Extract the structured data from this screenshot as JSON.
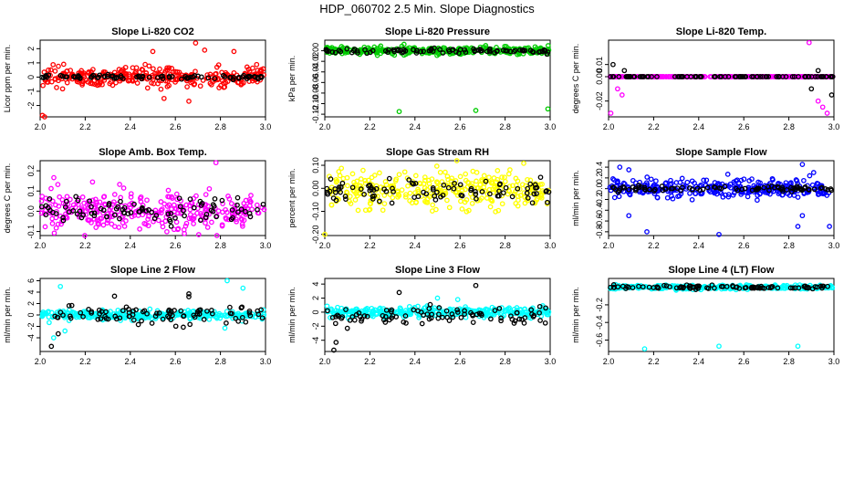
{
  "page_title": "HDP_060702  2.5 Min. Slope Diagnostics",
  "colors": {
    "black": "#000000",
    "red": "#ff0000",
    "green": "#00cc00",
    "magenta": "#ff00ff",
    "yellow": "#ffff00",
    "blue": "#0000ff",
    "cyan": "#00ffff"
  },
  "chart_data": [
    {
      "type": "scatter",
      "title": "Slope Li-820 CO2",
      "ylabel": "Licor ppm per min.",
      "xlabel": "",
      "xlim": [
        2.0,
        3.0
      ],
      "ylim": [
        -2.8,
        2.6
      ],
      "xticks": [
        "2.0",
        "2.2",
        "2.4",
        "2.6",
        "2.8",
        "3.0"
      ],
      "yticks": [
        "-2",
        "-1",
        "0",
        "1",
        "2"
      ],
      "color": "red",
      "series": [
        {
          "name": "all",
          "color": "red",
          "center": 0.0,
          "spread": 0.6,
          "outliers": [
            [
              2.01,
              -2.7
            ],
            [
              2.02,
              -2.8
            ],
            [
              2.5,
              1.8
            ],
            [
              2.55,
              -1.5
            ],
            [
              2.69,
              2.4
            ],
            [
              2.73,
              1.9
            ],
            [
              2.66,
              -1.7
            ],
            [
              2.86,
              1.8
            ]
          ]
        },
        {
          "name": "selected",
          "color": "black",
          "center": 0.0,
          "spread": 0.15,
          "outliers": []
        }
      ]
    },
    {
      "type": "scatter",
      "title": "Slope Li-820 Pressure",
      "ylabel": "kPa per min.",
      "xlabel": "",
      "xlim": [
        2.0,
        3.0
      ],
      "ylim": [
        -0.125,
        0.02
      ],
      "xticks": [
        "2.0",
        "2.2",
        "2.4",
        "2.6",
        "2.8",
        "3.0"
      ],
      "yticks": [
        "-0.12",
        "-0.10",
        "-0.08",
        "-0.06",
        "-0.04",
        "-0.02",
        "0.00"
      ],
      "color": "green",
      "series": [
        {
          "name": "all",
          "color": "green",
          "center": 0.0,
          "spread": 0.006,
          "outliers": [
            [
              2.33,
              -0.115
            ],
            [
              2.67,
              -0.113
            ],
            [
              2.99,
              -0.11
            ]
          ]
        },
        {
          "name": "selected",
          "color": "black",
          "center": 0.0,
          "spread": 0.004,
          "outliers": []
        }
      ]
    },
    {
      "type": "scatter",
      "title": "Slope Li-820 Temp.",
      "ylabel": "degrees C per min.",
      "xlabel": "",
      "xlim": [
        2.0,
        3.0
      ],
      "ylim": [
        -0.033,
        0.03
      ],
      "xticks": [
        "2.0",
        "2.2",
        "2.4",
        "2.6",
        "2.8",
        "3.0"
      ],
      "yticks": [
        "-0.02",
        "0.00",
        "0.01"
      ],
      "color": "magenta",
      "series": [
        {
          "name": "all",
          "color": "magenta",
          "center": 0.0,
          "spread": 0.0,
          "outliers": [
            [
              2.01,
              -0.03
            ],
            [
              2.89,
              0.028
            ],
            [
              2.95,
              -0.025
            ],
            [
              2.97,
              -0.03
            ],
            [
              2.93,
              -0.02
            ],
            [
              2.04,
              -0.01
            ],
            [
              2.06,
              -0.015
            ]
          ]
        },
        {
          "name": "selected",
          "color": "black",
          "center": 0.0,
          "spread": 0.0,
          "outliers": [
            [
              2.02,
              0.01
            ],
            [
              2.07,
              0.005
            ],
            [
              2.9,
              -0.01
            ],
            [
              2.99,
              -0.015
            ],
            [
              2.93,
              0.005
            ]
          ]
        }
      ]
    },
    {
      "type": "scatter",
      "title": "Slope Amb. Box Temp.",
      "ylabel": "degrees C per min.",
      "xlabel": "",
      "xlim": [
        2.0,
        3.0
      ],
      "ylim": [
        -0.12,
        0.25
      ],
      "xticks": [
        "2.0",
        "2.2",
        "2.4",
        "2.6",
        "2.8",
        "3.0"
      ],
      "yticks": [
        "-0.1",
        "0.0",
        "0.1",
        "0.2"
      ],
      "color": "magenta",
      "series": [
        {
          "name": "all",
          "color": "magenta",
          "center": 0.0,
          "spread": 0.09,
          "outliers": [
            [
              2.78,
              0.24
            ],
            [
              2.64,
              -0.11
            ]
          ]
        },
        {
          "name": "selected",
          "color": "black",
          "center": 0.0,
          "spread": 0.06,
          "outliers": []
        }
      ]
    },
    {
      "type": "scatter",
      "title": "Slope Gas Stream RH",
      "ylabel": "percent per min.",
      "xlabel": "",
      "xlim": [
        2.0,
        3.0
      ],
      "ylim": [
        -0.205,
        0.12
      ],
      "xticks": [
        "2.0",
        "2.2",
        "2.4",
        "2.6",
        "2.8",
        "3.0"
      ],
      "yticks": [
        "-0.20",
        "-0.10",
        "0.00",
        "0.10"
      ],
      "color": "yellow",
      "series": [
        {
          "name": "all",
          "color": "yellow",
          "center": -0.01,
          "spread": 0.07,
          "outliers": [
            [
              2.0,
              -0.2
            ]
          ]
        },
        {
          "name": "selected",
          "color": "black",
          "center": -0.01,
          "spread": 0.04,
          "outliers": []
        }
      ]
    },
    {
      "type": "scatter",
      "title": "Slope Sample Flow",
      "ylabel": "ml/min per min.",
      "xlabel": "",
      "xlim": [
        2.0,
        3.0
      ],
      "ylim": [
        -0.87,
        0.52
      ],
      "xticks": [
        "2.0",
        "2.2",
        "2.4",
        "2.6",
        "2.8",
        "3.0"
      ],
      "yticks": [
        "-0.8",
        "-0.6",
        "-0.4",
        "-0.2",
        "0.0",
        "0.2",
        "0.4"
      ],
      "color": "blue",
      "series": [
        {
          "name": "all",
          "color": "blue",
          "center": 0.0,
          "spread": 0.15,
          "outliers": [
            [
              2.05,
              0.4
            ],
            [
              2.09,
              0.35
            ],
            [
              2.17,
              -0.8
            ],
            [
              2.49,
              -0.85
            ],
            [
              2.86,
              0.45
            ],
            [
              2.91,
              0.3
            ],
            [
              2.98,
              -0.7
            ],
            [
              2.84,
              -0.7
            ],
            [
              2.09,
              -0.5
            ],
            [
              2.86,
              -0.5
            ]
          ]
        },
        {
          "name": "selected",
          "color": "black",
          "center": 0.0,
          "spread": 0.05,
          "outliers": []
        }
      ]
    },
    {
      "type": "scatter",
      "title": "Slope Line 2 Flow",
      "ylabel": "ml/min per min.",
      "xlabel": "",
      "xlim": [
        2.0,
        3.0
      ],
      "ylim": [
        -6.4,
        6.4
      ],
      "xticks": [
        "2.0",
        "2.2",
        "2.4",
        "2.6",
        "2.8",
        "3.0"
      ],
      "yticks": [
        "-4",
        "-2",
        "0",
        "2",
        "4",
        "6"
      ],
      "color": "cyan",
      "series": [
        {
          "name": "all",
          "color": "cyan",
          "center": 0.0,
          "spread": 0.7,
          "outliers": [
            [
              2.09,
              5.0
            ],
            [
              2.06,
              -4.0
            ],
            [
              2.11,
              -2.8
            ],
            [
              2.83,
              6.0
            ],
            [
              2.9,
              4.7
            ],
            [
              2.82,
              -2.3
            ]
          ]
        },
        {
          "name": "selected",
          "color": "black",
          "center": 0.0,
          "spread": 1.5,
          "outliers": [
            [
              2.05,
              -5.5
            ],
            [
              2.33,
              3.3
            ],
            [
              2.66,
              3.7
            ],
            [
              2.66,
              3.2
            ],
            [
              2.08,
              -3.3
            ]
          ]
        }
      ]
    },
    {
      "type": "scatter",
      "title": "Slope Line 3 Flow",
      "ylabel": "ml/min per min.",
      "xlabel": "",
      "xlim": [
        2.0,
        3.0
      ],
      "ylim": [
        -5.6,
        4.8
      ],
      "xticks": [
        "2.0",
        "2.2",
        "2.4",
        "2.6",
        "2.8",
        "3.0"
      ],
      "yticks": [
        "-4",
        "-2",
        "0",
        "2",
        "4"
      ],
      "color": "cyan",
      "series": [
        {
          "name": "all",
          "color": "cyan",
          "center": 0.0,
          "spread": 0.6,
          "outliers": [
            [
              2.5,
              2.0
            ],
            [
              2.59,
              1.8
            ]
          ]
        },
        {
          "name": "selected",
          "color": "black",
          "center": -0.5,
          "spread": 1.2,
          "outliers": [
            [
              2.04,
              -5.4
            ],
            [
              2.05,
              -4.3
            ],
            [
              2.33,
              2.8
            ],
            [
              2.67,
              3.8
            ],
            [
              2.1,
              -2.3
            ]
          ]
        }
      ]
    },
    {
      "type": "scatter",
      "title": "Slope Line 4 (LT) Flow",
      "ylabel": "ml/min per min.",
      "xlabel": "",
      "xlim": [
        2.0,
        3.0
      ],
      "ylim": [
        -0.73,
        0.1
      ],
      "xticks": [
        "2.0",
        "2.2",
        "2.4",
        "2.6",
        "2.8",
        "3.0"
      ],
      "yticks": [
        "-0.6",
        "-0.4",
        "-0.2"
      ],
      "color": "cyan",
      "series": [
        {
          "name": "all",
          "color": "cyan",
          "center": 0.0,
          "spread": 0.02,
          "outliers": [
            [
              2.16,
              -0.7
            ],
            [
              2.49,
              -0.67
            ],
            [
              2.84,
              -0.67
            ]
          ]
        },
        {
          "name": "selected",
          "color": "black",
          "center": 0.0,
          "spread": 0.02,
          "outliers": []
        }
      ]
    }
  ]
}
